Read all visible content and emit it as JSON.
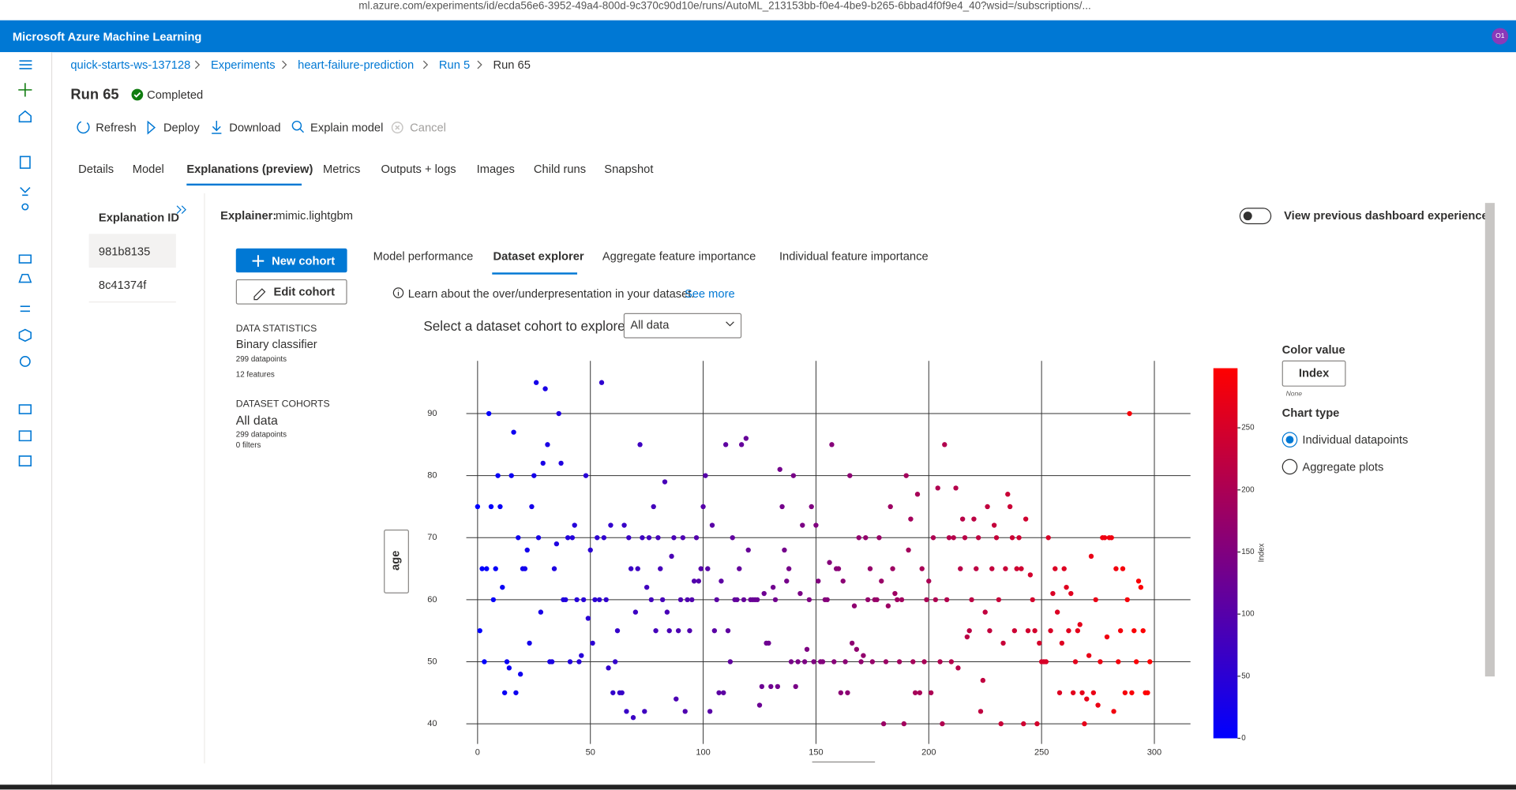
{
  "browser": {
    "url": "ml.azure.com/experiments/id/ecda56e6-3952-49a4-800d-9c370c90d10e/runs/AutoML_213153bb-f0e4-4be9-b265-6bbad4f0f9e4_40?wsid=/subscriptions/..."
  },
  "header": {
    "title": "Microsoft Azure Machine Learning",
    "avatar": "O1"
  },
  "breadcrumb": [
    "quick-starts-ws-137128",
    "Experiments",
    "heart-failure-prediction",
    "Run 5",
    "Run 65"
  ],
  "run": {
    "title": "Run 65",
    "status": "Completed"
  },
  "toolbar": [
    "Refresh",
    "Deploy",
    "Download",
    "Explain model",
    "Cancel"
  ],
  "tabs": [
    "Details",
    "Model",
    "Explanations (preview)",
    "Metrics",
    "Outputs + logs",
    "Images",
    "Child runs",
    "Snapshot"
  ],
  "explanations": {
    "title": "Explanation ID",
    "ids": [
      "981b8135",
      "8c41374f"
    ]
  },
  "explainer": {
    "label": "Explainer:",
    "value": "mimic.lightgbm"
  },
  "toggle_label": "View previous dashboard experience",
  "subtabs": [
    "Model performance",
    "Dataset explorer",
    "Aggregate feature importance",
    "Individual feature importance"
  ],
  "cohort_buttons": [
    "New cohort",
    "Edit cohort"
  ],
  "info": {
    "text": "Learn about the over/underpresentation in your dataset.",
    "link": "See more"
  },
  "select": {
    "label": "Select a dataset cohort to explore",
    "value": "All data"
  },
  "data_statistics": {
    "heading": "DATA STATISTICS",
    "type": "Binary classifier",
    "datapoints": "299 datapoints",
    "features": "12 features"
  },
  "dataset_cohorts": {
    "heading": "DATASET COHORTS",
    "name": "All data",
    "datapoints": "299 datapoints",
    "filters": "0 filters"
  },
  "side_panel": {
    "color_value": "Color value",
    "color_button": "Index",
    "color_note": "None",
    "chart_type": "Chart type",
    "options": [
      "Individual datapoints",
      "Aggregate plots"
    ]
  },
  "chart_data": {
    "type": "scatter",
    "y_label": "age",
    "x": [
      0,
      1,
      2,
      3,
      4,
      5,
      6,
      7,
      8,
      9,
      10,
      11,
      12,
      13,
      14,
      15,
      16,
      17,
      18,
      19,
      20,
      21,
      22,
      23,
      24,
      25,
      26,
      27,
      28,
      29,
      30,
      31,
      32,
      33,
      34,
      35,
      36,
      37,
      38,
      39,
      40,
      41,
      42,
      43,
      44,
      45,
      46,
      47,
      48,
      49,
      50,
      51,
      52,
      53,
      54,
      55,
      56,
      57,
      58,
      59,
      60,
      61,
      62,
      63,
      64,
      65,
      66,
      67,
      68,
      69,
      70,
      71,
      72,
      73,
      74,
      75,
      76,
      77,
      78,
      79,
      80,
      81,
      82,
      83,
      84,
      85,
      86,
      87,
      88,
      89,
      90,
      91,
      92,
      93,
      94,
      95,
      96,
      97,
      98,
      99,
      100,
      101,
      102,
      103,
      104,
      105,
      106,
      107,
      108,
      109,
      110,
      111,
      112,
      113,
      114,
      115,
      116,
      117,
      118,
      119,
      120,
      121,
      122,
      123,
      124,
      125,
      126,
      127,
      128,
      129,
      130,
      131,
      132,
      133,
      134,
      135,
      136,
      137,
      138,
      139,
      140,
      141,
      142,
      143,
      144,
      145,
      146,
      147,
      148,
      149,
      150,
      151,
      152,
      153,
      154,
      155,
      156,
      157,
      158,
      159,
      160,
      161,
      162,
      163,
      164,
      165,
      166,
      167,
      168,
      169,
      170,
      171,
      172,
      173,
      174,
      175,
      176,
      177,
      178,
      179,
      180,
      181,
      182,
      183,
      184,
      185,
      186,
      187,
      188,
      189,
      190,
      191,
      192,
      193,
      194,
      195,
      196,
      197,
      198,
      199,
      200,
      201,
      202,
      203,
      204,
      205,
      206,
      207,
      208,
      209,
      210,
      211,
      212,
      213,
      214,
      215,
      216,
      217,
      218,
      219,
      220,
      221,
      222,
      223,
      224,
      225,
      226,
      227,
      228,
      229,
      230,
      231,
      232,
      233,
      234,
      235,
      236,
      237,
      238,
      239,
      240,
      241,
      242,
      243,
      244,
      245,
      246,
      247,
      248,
      249,
      250,
      251,
      252,
      253,
      254,
      255,
      256,
      257,
      258,
      259,
      260,
      261,
      262,
      263,
      264,
      265,
      266,
      267,
      268,
      269,
      270,
      271,
      272,
      273,
      274,
      275,
      276,
      277,
      278,
      279,
      280,
      281,
      282,
      283,
      284,
      285,
      286,
      287,
      288,
      289,
      290,
      291,
      292,
      293,
      294,
      295,
      296,
      297,
      298
    ],
    "y": [
      75,
      55,
      65,
      50,
      65,
      90,
      75,
      60,
      65,
      80,
      75,
      62,
      45,
      50,
      49,
      80,
      87,
      45,
      70,
      48,
      65,
      65,
      68,
      53,
      75,
      80,
      95,
      70,
      58,
      82,
      94,
      85,
      50,
      50,
      65,
      69,
      90,
      82,
      60,
      60,
      70,
      50,
      70,
      72,
      60,
      50,
      51,
      60,
      80,
      57,
      68,
      53,
      60,
      70,
      60,
      95,
      70,
      60,
      49,
      72,
      45,
      50,
      55,
      45,
      45,
      72,
      42,
      70,
      65,
      41,
      58,
      65,
      85,
      70,
      42,
      62,
      70,
      60,
      75,
      55,
      70,
      65,
      60,
      79,
      58,
      55,
      67,
      70,
      44,
      55,
      60,
      70,
      42,
      60,
      55,
      60,
      63,
      70,
      63,
      65,
      75,
      80,
      65,
      42,
      72,
      55,
      60,
      45,
      63,
      45,
      85,
      55,
      50,
      70,
      60,
      60,
      65,
      85,
      60,
      86,
      68,
      60,
      60,
      60,
      60,
      43,
      46,
      61,
      53,
      53,
      46,
      62,
      60,
      46,
      81,
      75,
      68,
      63,
      65,
      50,
      80,
      46,
      50,
      61,
      72,
      50,
      52,
      60,
      75,
      50,
      72,
      63,
      50,
      50,
      60,
      60,
      66,
      85,
      50,
      65,
      65,
      45,
      63,
      50,
      45,
      80,
      53,
      59,
      52,
      70,
      50,
      51,
      70,
      60,
      65,
      50,
      60,
      60,
      70,
      63,
      40,
      50,
      59,
      75,
      65,
      61,
      60,
      50,
      60,
      40,
      80,
      68,
      73,
      50,
      45,
      77,
      45,
      65,
      50,
      60,
      63,
      45,
      70,
      60,
      78,
      50,
      40,
      85,
      60,
      70,
      50,
      70,
      78,
      49,
      65,
      73,
      70,
      54,
      55,
      60,
      73,
      65,
      70,
      42,
      47,
      58,
      75,
      55,
      65,
      72,
      70,
      60,
      40,
      53,
      65,
      77,
      75,
      70,
      55,
      65,
      70,
      65,
      40,
      73,
      55,
      64,
      60,
      55,
      40,
      53,
      50,
      50,
      50,
      70,
      55,
      61,
      65,
      58,
      45,
      53,
      65,
      62,
      55,
      61,
      45,
      50,
      55,
      56,
      45,
      40,
      44,
      51,
      67,
      45,
      60,
      43,
      50,
      70,
      70,
      54,
      70,
      70,
      42,
      65,
      50,
      55,
      65,
      45,
      60,
      90,
      45,
      55,
      50,
      63,
      62,
      55,
      45,
      45,
      50
    ],
    "xlim": [
      -5,
      316
    ],
    "ylim": [
      38,
      98.5
    ],
    "xticks": [
      0,
      50,
      100,
      150,
      200,
      250,
      300
    ],
    "yticks": [
      40,
      50,
      60,
      70,
      80,
      90
    ],
    "grid": true,
    "color_scale": {
      "label": "Index",
      "colors": [
        "#0000ff",
        "#ff0000"
      ],
      "lim": [
        0,
        298
      ],
      "ticks": [
        0,
        50,
        100,
        150,
        200,
        250
      ]
    }
  }
}
